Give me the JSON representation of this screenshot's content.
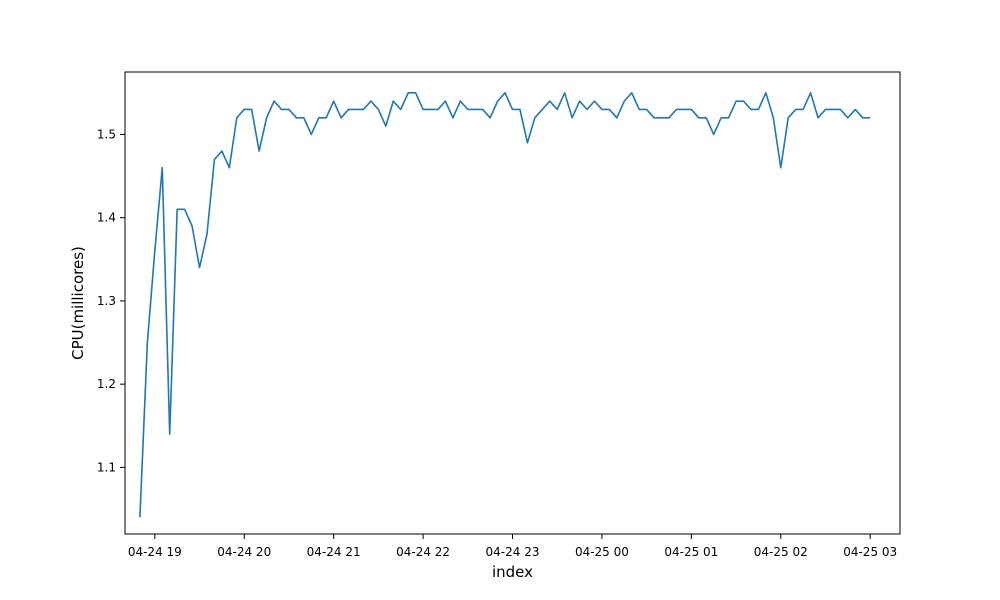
{
  "chart_data": {
    "type": "line",
    "title": "",
    "xlabel": "index",
    "ylabel": "CPU(millicores)",
    "grid": false,
    "legend": "none",
    "x_start": "2024-04-24 18:50",
    "x_step_minutes": 5,
    "x_ticks": [
      {
        "label": "04-24 19",
        "value": "2024-04-24 19:00"
      },
      {
        "label": "04-24 20",
        "value": "2024-04-24 20:00"
      },
      {
        "label": "04-24 21",
        "value": "2024-04-24 21:00"
      },
      {
        "label": "04-24 22",
        "value": "2024-04-24 22:00"
      },
      {
        "label": "04-24 23",
        "value": "2024-04-24 23:00"
      },
      {
        "label": "04-25 00",
        "value": "2024-04-25 00:00"
      },
      {
        "label": "04-25 01",
        "value": "2024-04-25 01:00"
      },
      {
        "label": "04-25 02",
        "value": "2024-04-25 02:00"
      },
      {
        "label": "04-25 03",
        "value": "2024-04-25 03:00"
      }
    ],
    "y_ticks": [
      "1.1",
      "1.2",
      "1.3",
      "1.4",
      "1.5"
    ],
    "xlim": [
      "2024-04-24 18:40",
      "2024-04-25 03:20"
    ],
    "ylim": [
      1.02,
      1.575
    ],
    "series": [
      {
        "color": "#1f77b4",
        "values": [
          1.04,
          1.25,
          1.36,
          1.46,
          1.14,
          1.41,
          1.41,
          1.39,
          1.34,
          1.38,
          1.47,
          1.48,
          1.46,
          1.52,
          1.53,
          1.53,
          1.48,
          1.52,
          1.54,
          1.53,
          1.53,
          1.52,
          1.52,
          1.5,
          1.52,
          1.52,
          1.54,
          1.52,
          1.53,
          1.53,
          1.53,
          1.54,
          1.53,
          1.51,
          1.54,
          1.53,
          1.55,
          1.55,
          1.53,
          1.53,
          1.53,
          1.54,
          1.52,
          1.54,
          1.53,
          1.53,
          1.53,
          1.52,
          1.54,
          1.55,
          1.53,
          1.53,
          1.49,
          1.52,
          1.53,
          1.54,
          1.53,
          1.55,
          1.52,
          1.54,
          1.53,
          1.54,
          1.53,
          1.53,
          1.52,
          1.54,
          1.55,
          1.53,
          1.53,
          1.52,
          1.52,
          1.52,
          1.53,
          1.53,
          1.53,
          1.52,
          1.52,
          1.5,
          1.52,
          1.52,
          1.54,
          1.54,
          1.53,
          1.53,
          1.55,
          1.52,
          1.46,
          1.52,
          1.53,
          1.53,
          1.55,
          1.52,
          1.53,
          1.53,
          1.53,
          1.52,
          1.53,
          1.52,
          1.52
        ]
      }
    ]
  }
}
